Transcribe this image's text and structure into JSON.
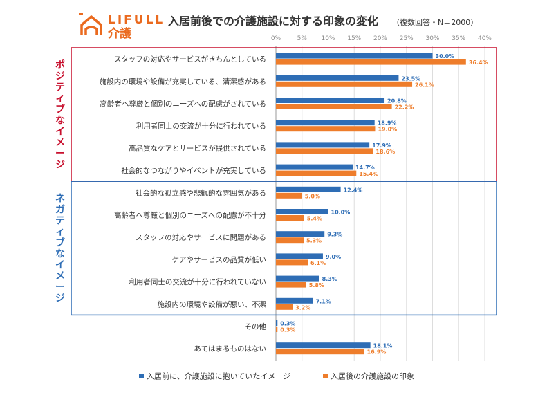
{
  "logo": {
    "brand": "LIFULL",
    "sub": "介護",
    "color": "#EA6A1F"
  },
  "chart_data": {
    "type": "bar",
    "orientation": "horizontal",
    "title": "入居前後での介護施設に対する印象の変化",
    "subtitle": "（複数回答・N＝2000）",
    "xlim": [
      0,
      40
    ],
    "ticks": [
      0,
      5,
      10,
      15,
      20,
      25,
      30,
      35,
      40
    ],
    "tick_suffix": "%",
    "grid": true,
    "categories": [
      "スタッフの対応やサービスがきちんとしている",
      "施設内の環境や設備が充実している、清潔感がある",
      "高齢者へ尊厳と個別のニーズへの配慮がされている",
      "利用者同士の交流が十分に行われている",
      "高品質なケアとサービスが提供されている",
      "社会的なつながりやイベントが充実している",
      "社会的な孤立感や悲観的な雰囲気がある",
      "高齢者へ尊厳と個別のニーズへの配慮が不十分",
      "スタッフの対応やサービスに問題がある",
      "ケアやサービスの品質が低い",
      "利用者同士の交流が十分に行われていない",
      "施設内の環境や設備が悪い、不潔",
      "その他",
      "あてはまるものはない"
    ],
    "series": [
      {
        "name": "入居前に、介護施設に抱いていたイメージ",
        "color": "#2E6DB5",
        "values": [
          30.0,
          23.5,
          20.8,
          18.9,
          17.9,
          14.7,
          12.4,
          10.0,
          9.3,
          9.0,
          8.3,
          7.1,
          0.3,
          18.1
        ],
        "labels": [
          "30.0%",
          "23.5%",
          "20.8%",
          "18.9%",
          "17.9%",
          "14.7%",
          "12.4%",
          "10.0%",
          "9.3%",
          "9.0%",
          "8.3%",
          "7.1%",
          "0.3%",
          "18.1%"
        ]
      },
      {
        "name": "入居後の介護施設の印象",
        "color": "#EE7D2B",
        "values": [
          36.4,
          26.1,
          22.2,
          19.0,
          18.6,
          15.4,
          5.0,
          5.4,
          5.3,
          6.1,
          5.8,
          3.2,
          0.3,
          16.9
        ],
        "labels": [
          "36.4%",
          "26.1%",
          "22.2%",
          "19.0%",
          "18.6%",
          "15.4%",
          "5.0%",
          "5.4%",
          "5.3%",
          "6.1%",
          "5.8%",
          "3.2%",
          "0.3%",
          "16.9%"
        ]
      }
    ],
    "groups": [
      {
        "label": "ポジティブなイメージ",
        "color": "#C8102E",
        "from": 0,
        "to": 5
      },
      {
        "label": "ネガティブなイメージ",
        "color": "#2E6DB5",
        "from": 6,
        "to": 11
      }
    ],
    "legend_position": "bottom"
  }
}
